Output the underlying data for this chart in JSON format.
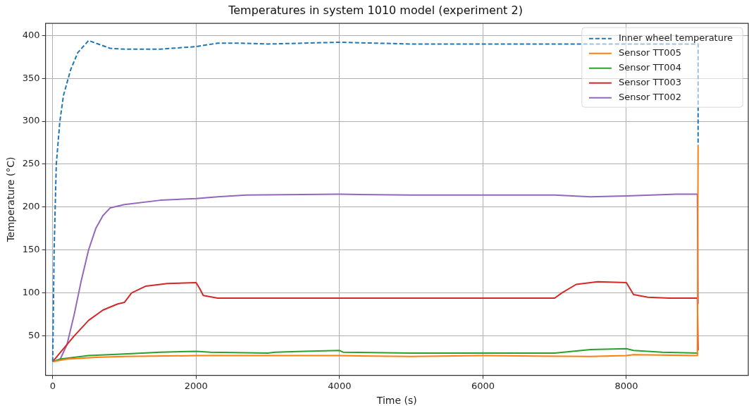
{
  "chart_data": {
    "type": "line",
    "title": "Temperatures in system 1010 model (experiment 2)",
    "xlabel": "Time (s)",
    "ylabel": "Temperature (°C)",
    "xlim": [
      -100,
      9700
    ],
    "xticks": [
      0,
      2000,
      4000,
      6000,
      8000
    ],
    "ylim": [
      4,
      414
    ],
    "yticks": [
      50,
      100,
      150,
      200,
      250,
      300,
      350,
      400
    ],
    "grid": true,
    "legend": "top right",
    "marker": "none",
    "series": [
      {
        "name": "Inner wheel temperature",
        "color": "#1f77b4",
        "line_style": "dashed",
        "x": [
          0,
          20,
          50,
          100,
          150,
          250,
          350,
          500,
          600,
          800,
          1000,
          1500,
          2000,
          2300,
          2600,
          3000,
          4000,
          5000,
          6000,
          7000,
          8000,
          9000,
          9000
        ],
        "values": [
          20,
          150,
          250,
          300,
          330,
          360,
          380,
          394,
          391,
          385,
          384,
          384,
          387,
          391,
          391,
          390,
          392,
          390,
          390,
          390,
          390,
          390,
          272
        ]
      },
      {
        "name": "Sensor TT005",
        "color": "#ff7f0e",
        "line_style": "solid",
        "x": [
          0,
          200,
          600,
          1000,
          2000,
          4000,
          5000,
          6000,
          7500,
          8000,
          8100,
          8990,
          9000
        ],
        "values": [
          20,
          23,
          25,
          26,
          27,
          27,
          26,
          27,
          26,
          27,
          28,
          27,
          272
        ]
      },
      {
        "name": "Sensor TT004",
        "color": "#2ca02c",
        "line_style": "solid",
        "x": [
          0,
          100,
          500,
          1000,
          1500,
          2000,
          2200,
          3000,
          3100,
          3500,
          4000,
          4050,
          5000,
          7000,
          7500,
          8000,
          8100,
          8500,
          9000
        ],
        "values": [
          20,
          23,
          27,
          29,
          31,
          32,
          31,
          30,
          31,
          32,
          33,
          31,
          30,
          30,
          34,
          35,
          33,
          31,
          30
        ]
      },
      {
        "name": "Sensor TT003",
        "color": "#d62728",
        "line_style": "solid",
        "x": [
          0,
          100,
          300,
          500,
          700,
          900,
          1000,
          1100,
          1300,
          1600,
          2000,
          2050,
          2100,
          2300,
          3000,
          7000,
          7100,
          7300,
          7600,
          8000,
          8100,
          8300,
          8600,
          8990,
          9000
        ],
        "values": [
          20,
          30,
          50,
          68,
          80,
          87,
          89,
          100,
          108,
          111,
          112,
          105,
          97,
          94,
          94,
          94,
          100,
          110,
          113,
          112,
          98,
          95,
          94,
          94,
          33
        ]
      },
      {
        "name": "Sensor TT002",
        "color": "#9467bd",
        "line_style": "solid",
        "x": [
          0,
          100,
          200,
          300,
          400,
          500,
          600,
          700,
          800,
          1000,
          1500,
          2000,
          2300,
          2700,
          4000,
          5000,
          7000,
          7500,
          8000,
          8700,
          8990,
          9000
        ],
        "values": [
          20,
          22,
          40,
          75,
          115,
          150,
          175,
          190,
          199,
          203,
          208,
          210,
          212,
          214,
          215,
          214,
          214,
          212,
          213,
          215,
          215,
          87
        ]
      }
    ]
  }
}
